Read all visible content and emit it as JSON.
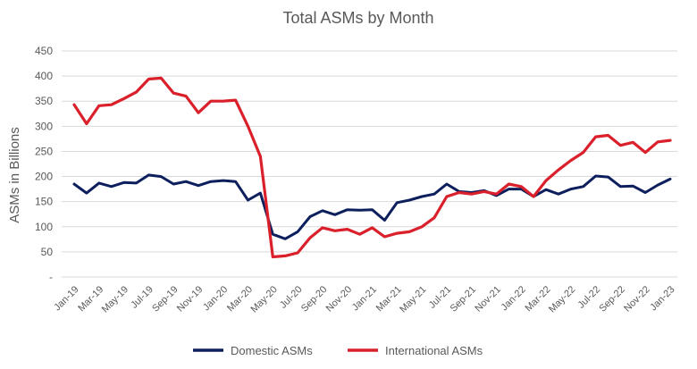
{
  "chart_data": {
    "type": "line",
    "title": "Total ASMs by Month",
    "xlabel": "",
    "ylabel": "ASMs in Billions",
    "ylim": [
      0,
      450
    ],
    "yticks": [
      0,
      50,
      100,
      150,
      200,
      250,
      300,
      350,
      400,
      450
    ],
    "ytick_labels": [
      "-",
      "50",
      "100",
      "150",
      "200",
      "250",
      "300",
      "350",
      "400",
      "450"
    ],
    "grid": "horizontal",
    "legend_position": "bottom",
    "categories": [
      "Jan-19",
      "Feb-19",
      "Mar-19",
      "Apr-19",
      "May-19",
      "Jun-19",
      "Jul-19",
      "Aug-19",
      "Sep-19",
      "Oct-19",
      "Nov-19",
      "Dec-19",
      "Jan-20",
      "Feb-20",
      "Mar-20",
      "Apr-20",
      "May-20",
      "Jun-20",
      "Jul-20",
      "Aug-20",
      "Sep-20",
      "Oct-20",
      "Nov-20",
      "Dec-20",
      "Jan-21",
      "Feb-21",
      "Mar-21",
      "Apr-21",
      "May-21",
      "Jun-21",
      "Jul-21",
      "Aug-21",
      "Sep-21",
      "Oct-21",
      "Nov-21",
      "Dec-21",
      "Jan-22",
      "Feb-22",
      "Mar-22",
      "Apr-22",
      "May-22",
      "Jun-22",
      "Jul-22",
      "Aug-22",
      "Sep-22",
      "Oct-22",
      "Nov-22",
      "Dec-22",
      "Jan-23"
    ],
    "x_tick_labels": [
      "Jan-19",
      "Mar-19",
      "May-19",
      "Jul-19",
      "Sep-19",
      "Nov-19",
      "Jan-20",
      "Mar-20",
      "May-20",
      "Jul-20",
      "Sep-20",
      "Nov-20",
      "Jan-21",
      "Mar-21",
      "May-21",
      "Jul-21",
      "Sep-21",
      "Nov-21",
      "Jan-22",
      "Mar-22",
      "May-22",
      "Jul-22",
      "Sep-22",
      "Nov-22",
      "Jan-23"
    ],
    "series": [
      {
        "name": "Domestic ASMs",
        "color": "#0D1F5C",
        "values": [
          185,
          167,
          187,
          180,
          188,
          187,
          203,
          200,
          185,
          190,
          182,
          190,
          192,
          190,
          153,
          167,
          85,
          76,
          90,
          120,
          132,
          124,
          134,
          133,
          134,
          113,
          148,
          153,
          160,
          165,
          185,
          170,
          168,
          172,
          162,
          175,
          175,
          160,
          174,
          165,
          175,
          180,
          201,
          199,
          180,
          181,
          168,
          183,
          195
        ]
      },
      {
        "name": "International ASMs",
        "color": "#D9202B",
        "values": [
          343,
          305,
          341,
          343,
          355,
          368,
          394,
          396,
          366,
          360,
          327,
          350,
          350,
          352,
          300,
          240,
          40,
          42,
          48,
          78,
          98,
          92,
          95,
          85,
          98,
          80,
          87,
          90,
          100,
          118,
          160,
          168,
          165,
          170,
          165,
          185,
          180,
          160,
          192,
          213,
          232,
          248,
          279,
          282,
          262,
          268,
          248,
          269,
          272
        ]
      }
    ]
  }
}
